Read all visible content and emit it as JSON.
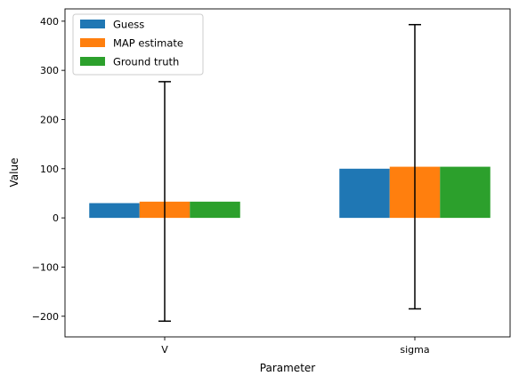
{
  "chart_data": {
    "type": "bar",
    "categories": [
      "V",
      "sigma"
    ],
    "series": [
      {
        "name": "Guess",
        "values": [
          30,
          100
        ],
        "color": "#1f77b4"
      },
      {
        "name": "MAP estimate",
        "values": [
          33,
          104
        ],
        "color": "#ff7f0e"
      },
      {
        "name": "Ground truth",
        "values": [
          33,
          104
        ],
        "color": "#2ca02c"
      }
    ],
    "error_bars": [
      {
        "category": "V",
        "low": -210,
        "high": 277
      },
      {
        "category": "sigma",
        "low": -185,
        "high": 393
      }
    ],
    "xlabel": "Parameter",
    "ylabel": "Value",
    "ylim": [
      -242,
      425
    ],
    "yticks": [
      -200,
      -100,
      0,
      100,
      200,
      300,
      400
    ],
    "grid": false,
    "legend_position": "top-left"
  }
}
